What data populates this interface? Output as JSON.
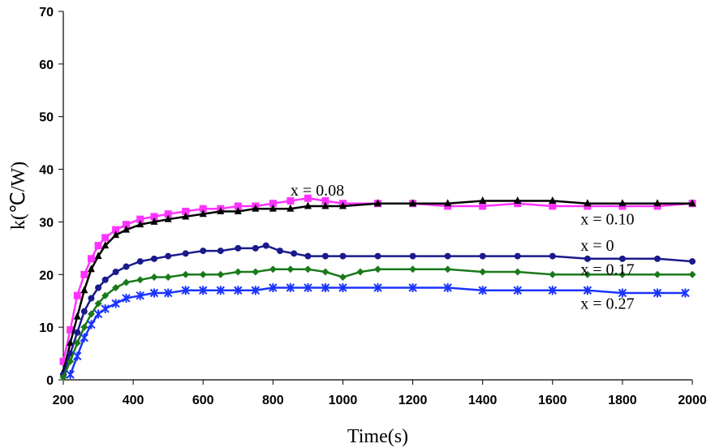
{
  "chart_data": {
    "type": "scatter",
    "xlabel": "Time(s)",
    "ylabel": "k(℃/W)",
    "xlim": [
      200,
      2000
    ],
    "ylim": [
      0,
      70
    ],
    "x_ticks": [
      200,
      400,
      600,
      800,
      1000,
      1200,
      1400,
      1600,
      1800,
      2000
    ],
    "y_ticks": [
      0,
      10,
      20,
      30,
      40,
      50,
      60,
      70
    ],
    "grid": false,
    "legend": "none (inline labels)",
    "series": [
      {
        "name": "x = 0.08",
        "color": "#ff33ff",
        "marker": "square",
        "x": [
          200,
          220,
          240,
          260,
          280,
          300,
          320,
          350,
          380,
          420,
          460,
          500,
          550,
          600,
          650,
          700,
          750,
          800,
          850,
          900,
          950,
          1000,
          1100,
          1200,
          1300,
          1400,
          1500,
          1600,
          1700,
          1800,
          1900,
          2000
        ],
        "y": [
          3.5,
          9.5,
          16,
          20,
          23,
          25.5,
          27,
          28.5,
          29.5,
          30.5,
          31,
          31.5,
          32,
          32.5,
          32.5,
          33,
          33,
          33.5,
          34,
          34.5,
          34,
          33.5,
          33.5,
          33.5,
          33,
          33,
          33.5,
          33,
          33,
          33,
          33,
          33.5
        ]
      },
      {
        "name": "x = 0.10",
        "color": "#000000",
        "marker": "triangle",
        "x": [
          200,
          220,
          240,
          260,
          280,
          300,
          320,
          350,
          380,
          420,
          460,
          500,
          550,
          600,
          650,
          700,
          750,
          800,
          850,
          900,
          950,
          1000,
          1100,
          1200,
          1300,
          1400,
          1500,
          1600,
          1700,
          1800,
          1900,
          2000
        ],
        "y": [
          1.5,
          7,
          12,
          17,
          21,
          23.5,
          25.5,
          27.5,
          28.5,
          29.5,
          30,
          30.5,
          31,
          31.5,
          32,
          32,
          32.5,
          32.5,
          32.5,
          33,
          33,
          33,
          33.5,
          33.5,
          33.5,
          34,
          34,
          34,
          33.5,
          33.5,
          33.5,
          33.5
        ]
      },
      {
        "name": "x = 0",
        "color": "#1a1a8c",
        "marker": "circle",
        "x": [
          200,
          220,
          240,
          260,
          280,
          300,
          320,
          350,
          380,
          420,
          460,
          500,
          550,
          600,
          650,
          700,
          750,
          780,
          820,
          860,
          900,
          950,
          1000,
          1100,
          1200,
          1300,
          1400,
          1500,
          1600,
          1700,
          1800,
          1900,
          2000
        ],
        "y": [
          1,
          5,
          9,
          13,
          15.5,
          17.5,
          19,
          20.5,
          21.5,
          22.5,
          23,
          23.5,
          24,
          24.5,
          24.5,
          25,
          25,
          25.5,
          24.5,
          24,
          23.5,
          23.5,
          23.5,
          23.5,
          23.5,
          23.5,
          23.5,
          23.5,
          23.5,
          23,
          23,
          23,
          22.5
        ]
      },
      {
        "name": "x = 0.17",
        "color": "#1a7a1a",
        "marker": "diamond",
        "x": [
          200,
          220,
          240,
          260,
          280,
          300,
          320,
          350,
          380,
          420,
          460,
          500,
          550,
          600,
          650,
          700,
          750,
          800,
          850,
          900,
          950,
          1000,
          1050,
          1100,
          1200,
          1300,
          1400,
          1500,
          1600,
          1700,
          1800,
          1900,
          2000
        ],
        "y": [
          0.5,
          3.5,
          7,
          10,
          12.5,
          14.5,
          16,
          17.5,
          18.5,
          19,
          19.5,
          19.5,
          20,
          20,
          20,
          20.5,
          20.5,
          21,
          21,
          21,
          20.5,
          19.5,
          20.5,
          21,
          21,
          21,
          20.5,
          20.5,
          20,
          20,
          20,
          20,
          20
        ]
      },
      {
        "name": "x = 0.27",
        "color": "#1a33ff",
        "marker": "star",
        "x": [
          220,
          240,
          260,
          280,
          300,
          320,
          350,
          380,
          420,
          460,
          500,
          550,
          600,
          650,
          700,
          750,
          800,
          850,
          900,
          950,
          1000,
          1100,
          1200,
          1300,
          1400,
          1500,
          1600,
          1700,
          1800,
          1900,
          1980
        ],
        "y": [
          1,
          4.5,
          8,
          10.5,
          12.5,
          13.5,
          14.5,
          15.5,
          16,
          16.5,
          16.5,
          17,
          17,
          17,
          17,
          17,
          17.5,
          17.5,
          17.5,
          17.5,
          17.5,
          17.5,
          17.5,
          17.5,
          17,
          17,
          17,
          17,
          16.5,
          16.5,
          16.5
        ]
      }
    ]
  },
  "labels": [
    {
      "text": "x = 0.08",
      "x": 850,
      "y": 35
    },
    {
      "text": "x = 0.10",
      "x": 1680,
      "y": 29.5
    },
    {
      "text": "x = 0",
      "x": 1680,
      "y": 24.5
    },
    {
      "text": "x = 0.17",
      "x": 1680,
      "y": 20
    },
    {
      "text": "x = 0.27",
      "x": 1680,
      "y": 13.5
    }
  ]
}
